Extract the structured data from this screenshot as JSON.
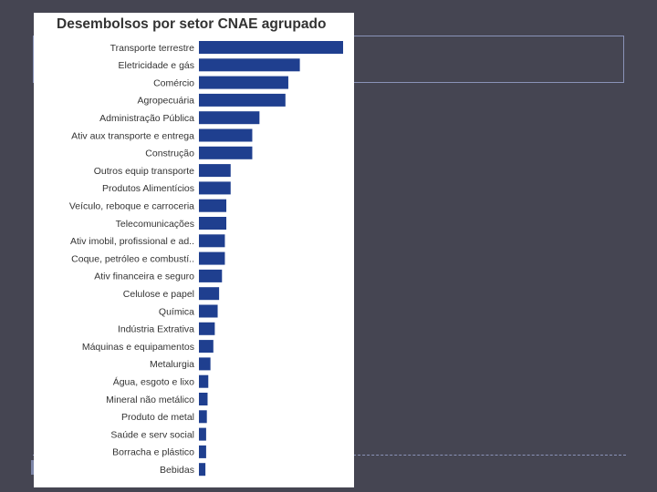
{
  "chart_data": {
    "type": "bar",
    "orientation": "horizontal",
    "title": "Desembolsos por setor CNAE agrupado",
    "xlabel": "",
    "ylabel": "",
    "grid": false,
    "legend": "none",
    "bar_color": "#1f3f8f",
    "xlim": [
      0,
      100
    ],
    "categories": [
      "Transporte terrestre",
      "Eletricidade e gás",
      "Comércio",
      "Agropecuária",
      "Administração Pública",
      "Ativ aux transporte e entrega",
      "Construção",
      "Outros equip transporte",
      "Produtos Alimentícios",
      "Veículo, reboque e carroceria",
      "Telecomunicações",
      "Ativ imobil, profissional e ad..",
      "Coque, petróleo e combustí..",
      "Ativ financeira e seguro",
      "Celulose e papel",
      "Química",
      "Indústria Extrativa",
      "Máquinas e equipamentos",
      "Metalurgia",
      "Água, esgoto e lixo",
      "Mineral não metálico",
      "Produto de metal",
      "Saúde e serv social",
      "Borracha e plástico",
      "Bebidas"
    ],
    "values": [
      100,
      70,
      62,
      60,
      42,
      37,
      37,
      22,
      22,
      19,
      19,
      18,
      18,
      16,
      14,
      13,
      11,
      10,
      8,
      6.5,
      6,
      5.5,
      5,
      5,
      4.5
    ]
  }
}
